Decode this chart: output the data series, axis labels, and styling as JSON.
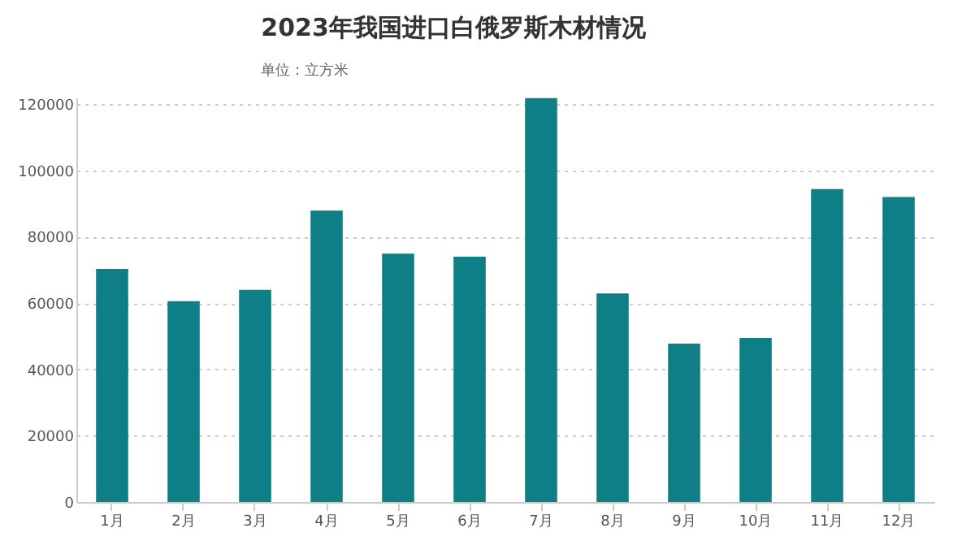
{
  "chart_data": {
    "type": "bar",
    "title": "2023年我国进口白俄罗斯木材情况",
    "annotations": [
      "单位：立方米"
    ],
    "categories": [
      "1月",
      "2月",
      "3月",
      "4月",
      "5月",
      "6月",
      "7月",
      "8月",
      "9月",
      "10月",
      "11月",
      "12月"
    ],
    "values": [
      70300,
      60600,
      64000,
      87900,
      74900,
      74000,
      121800,
      62900,
      47800,
      49500,
      94400,
      92000
    ],
    "color": "#0e7f86",
    "ylim": [
      0,
      122000
    ],
    "yticks": [
      0,
      20000,
      40000,
      60000,
      80000,
      100000,
      120000
    ],
    "grid": "y"
  }
}
